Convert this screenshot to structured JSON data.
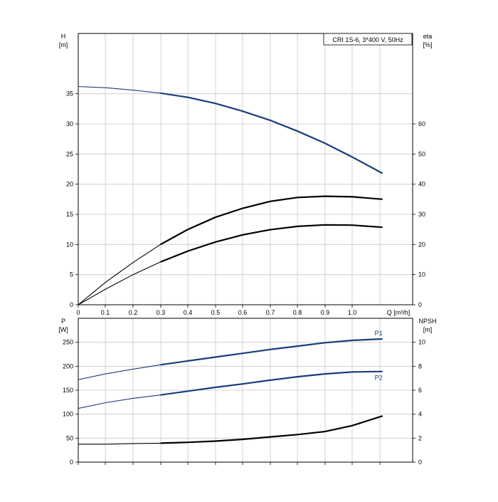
{
  "title_box": "CRI 1S-6, 3*400 V, 50Hz",
  "chart_data": [
    {
      "type": "line",
      "panel": "top",
      "xlabel": "Q [m³/h]",
      "x_ticks": [
        "0",
        "0.1",
        "0.2",
        "0.3",
        "0.4",
        "0.5",
        "0.6",
        "0.7",
        "0.8",
        "0.9",
        "1.0"
      ],
      "xlim": [
        0,
        1.22
      ],
      "ylabel_left": [
        "H",
        "[m]"
      ],
      "ylim_left": [
        0,
        45
      ],
      "y_ticks_left": [
        "0",
        "5",
        "10",
        "15",
        "20",
        "25",
        "30",
        "35"
      ],
      "ylabel_right": [
        "eta",
        "[%]"
      ],
      "ylim_right": [
        0,
        90
      ],
      "y_ticks_right": [
        "0",
        "10",
        "20",
        "30",
        "40",
        "50",
        "60"
      ],
      "grid": true,
      "series": [
        {
          "axis": "left",
          "color": "#1a3d7a",
          "x": [
            0,
            0.1,
            0.2,
            0.3,
            0.4,
            0.5,
            0.6,
            0.7,
            0.8,
            0.9,
            1.0,
            1.11
          ],
          "y": [
            36.2,
            36.0,
            35.6,
            35.1,
            34.4,
            33.4,
            32.1,
            30.6,
            28.8,
            26.8,
            24.5,
            21.8
          ]
        },
        {
          "axis": "right",
          "color": "#000000",
          "x": [
            0,
            0.1,
            0.2,
            0.3,
            0.4,
            0.5,
            0.6,
            0.7,
            0.8,
            0.9,
            1.0,
            1.11
          ],
          "y": [
            0,
            7.5,
            14.0,
            20.0,
            25.0,
            29.0,
            32.0,
            34.3,
            35.6,
            36.0,
            35.8,
            35.0
          ]
        },
        {
          "axis": "right",
          "color": "#000000",
          "x": [
            0,
            0.1,
            0.2,
            0.3,
            0.4,
            0.5,
            0.6,
            0.7,
            0.8,
            0.9,
            1.0,
            1.11
          ],
          "y": [
            0,
            5.2,
            10.0,
            14.2,
            17.8,
            20.8,
            23.2,
            24.9,
            26.0,
            26.5,
            26.4,
            25.7
          ]
        }
      ]
    },
    {
      "type": "line",
      "panel": "bottom",
      "xlim": [
        0,
        1.22
      ],
      "ylabel_left": [
        "P",
        "[W]"
      ],
      "ylim_left": [
        0,
        300
      ],
      "y_ticks_left": [
        "0",
        "50",
        "100",
        "150",
        "200",
        "250"
      ],
      "ylabel_right": [
        "NPSH",
        "[m]"
      ],
      "ylim_right": [
        0,
        12
      ],
      "y_ticks_right": [
        "0",
        "2",
        "4",
        "6",
        "8",
        "10"
      ],
      "grid": true,
      "series": [
        {
          "name": "P1",
          "axis": "left",
          "color": "#1a3d7a",
          "x": [
            0,
            0.1,
            0.2,
            0.3,
            0.4,
            0.5,
            0.6,
            0.7,
            0.8,
            0.9,
            1.0,
            1.11
          ],
          "y": [
            172,
            184,
            194,
            203,
            211,
            219,
            227,
            235,
            242,
            249,
            254,
            257
          ]
        },
        {
          "name": "P2",
          "axis": "left",
          "color": "#1a3d7a",
          "x": [
            0,
            0.1,
            0.2,
            0.3,
            0.4,
            0.5,
            0.6,
            0.7,
            0.8,
            0.9,
            1.0,
            1.11
          ],
          "y": [
            112,
            124,
            133,
            140,
            148,
            156,
            163,
            171,
            178,
            184,
            188,
            189
          ]
        },
        {
          "axis": "right",
          "color": "#000000",
          "x": [
            0,
            0.1,
            0.2,
            0.3,
            0.4,
            0.5,
            0.6,
            0.7,
            0.8,
            0.9,
            1.0,
            1.11
          ],
          "y": [
            1.5,
            1.5,
            1.55,
            1.58,
            1.65,
            1.75,
            1.9,
            2.1,
            2.3,
            2.55,
            3.05,
            3.85
          ]
        }
      ]
    }
  ]
}
